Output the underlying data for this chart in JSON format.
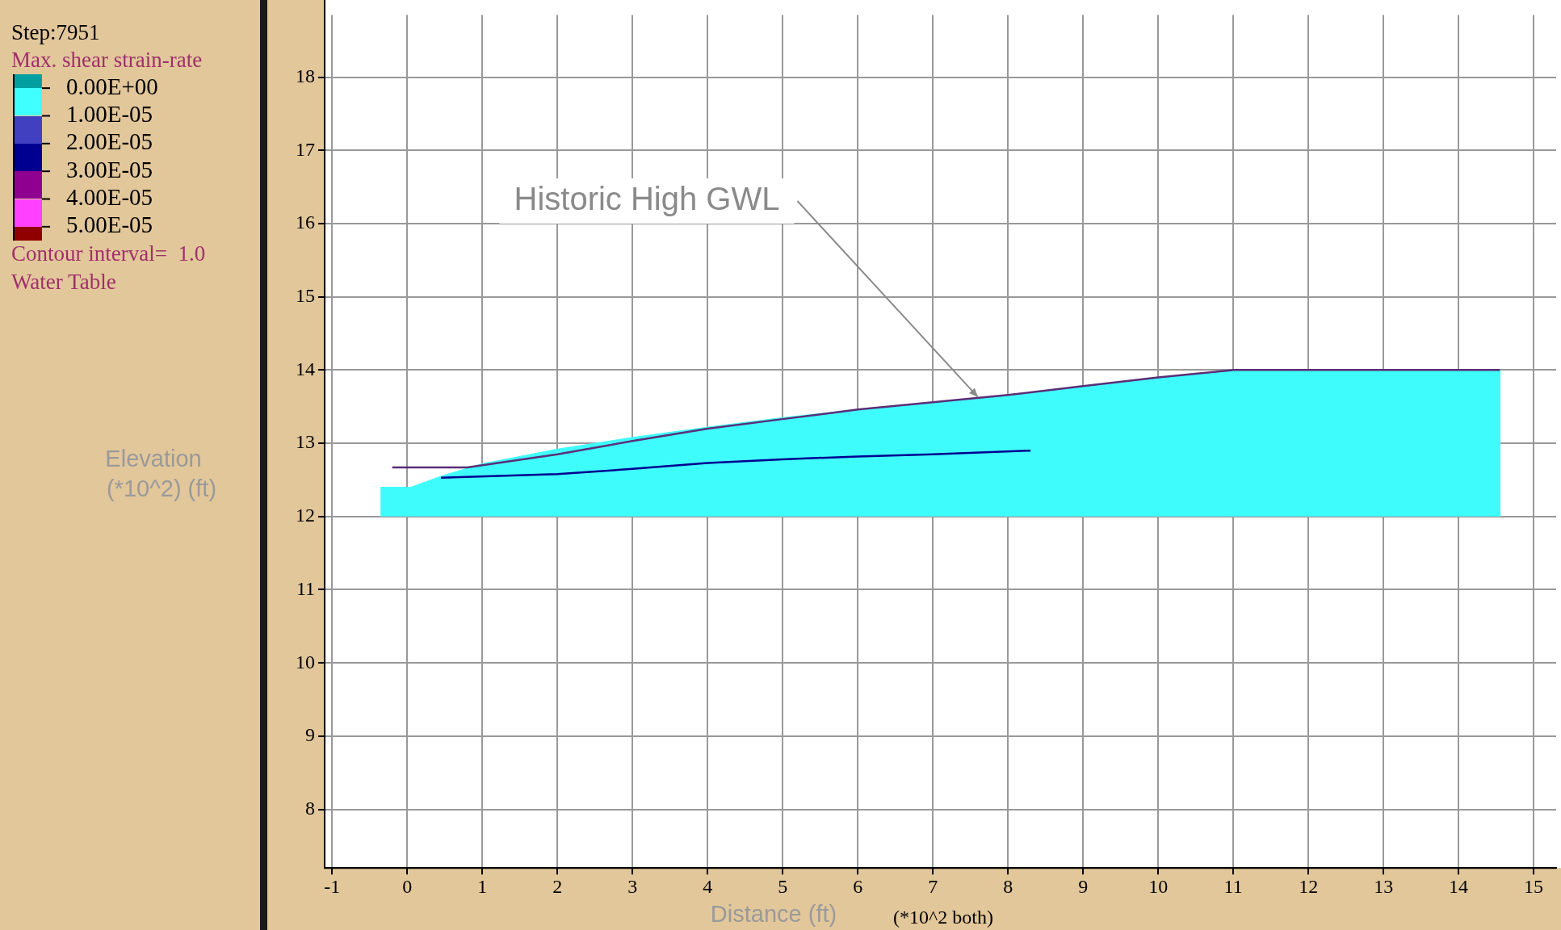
{
  "chart_data": {
    "type": "area",
    "xlabel": "Distance (ft)",
    "ylabel": "Elevation (*10^2) (ft)",
    "clabel": "Max. shear strain-rate",
    "clim": [
      -5e-06,
      5.5e-05
    ],
    "cticks": [
      {
        "value": 0,
        "label": "0.00E+00"
      },
      {
        "value": 1e-05,
        "label": "1.00E-05"
      },
      {
        "value": 2e-05,
        "label": "2.00E-05"
      },
      {
        "value": 3e-05,
        "label": "3.00E-05"
      },
      {
        "value": 4e-05,
        "label": "4.00E-05"
      },
      {
        "value": 5e-05,
        "label": "5.00E-05"
      }
    ],
    "xlim": [
      -1.1,
      15.3
    ],
    "ylim": [
      7.2,
      18.85
    ],
    "xticks": [
      -1,
      0,
      1,
      2,
      3,
      4,
      5,
      6,
      7,
      8,
      9,
      10,
      11,
      12,
      13,
      14,
      15
    ],
    "yticks": [
      8,
      9,
      10,
      11,
      12,
      13,
      14,
      15,
      16,
      17,
      18
    ],
    "grid": true,
    "legend": "left",
    "series": [
      {
        "color": "#3ffcfc",
        "x": [
          -0.35,
          -0.35,
          0.05,
          0.45,
          1.0,
          2.0,
          3.0,
          4.0,
          5.0,
          6.0,
          7.0,
          8.0,
          9.0,
          10.0,
          11.0,
          14.55,
          14.55
        ],
        "values": [
          12,
          12.4,
          12.4,
          12.55,
          12.72,
          12.92,
          13.08,
          13.22,
          13.35,
          13.46,
          13.56,
          13.66,
          13.78,
          13.9,
          14.0,
          14.0,
          12
        ]
      },
      {
        "type": "line",
        "name": "Water Table",
        "color": "#5a2e78",
        "x": [
          -0.2,
          0.8,
          2.0,
          3.0,
          4.0,
          5.0,
          6.0,
          7.0,
          8.0,
          9.0,
          10.0,
          11.0,
          14.55
        ],
        "values": [
          12.67,
          12.67,
          12.85,
          13.03,
          13.2,
          13.33,
          13.46,
          13.56,
          13.66,
          13.78,
          13.9,
          14.0,
          14.0
        ]
      },
      {
        "type": "line",
        "color": "#000090",
        "x": [
          0.45,
          2.0,
          3.0,
          4.0,
          5.0,
          6.0,
          7.0,
          8.3
        ],
        "values": [
          12.53,
          12.58,
          12.65,
          12.73,
          12.78,
          12.82,
          12.85,
          12.9
        ]
      }
    ],
    "annotations": [
      "Step:7951",
      "Contour interval=  1.0",
      "(*10^2 both)",
      {
        "text": "Historic High GWL",
        "x": 7.6,
        "y": 13.63
      }
    ]
  }
}
